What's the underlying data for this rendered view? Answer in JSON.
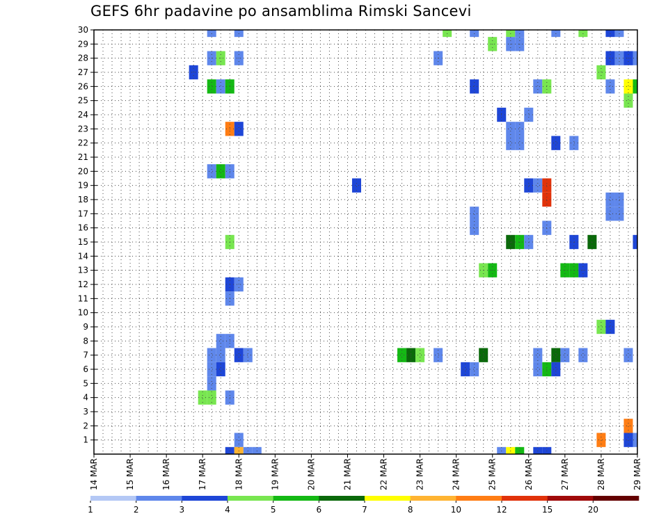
{
  "chart_data": {
    "type": "heatmap",
    "title": "GEFS 6hr padavine po ansamblima Rimski Sancevi",
    "xlabel": "",
    "ylabel": "",
    "x_ticks": [
      "14 MAR",
      "15 MAR",
      "16 MAR",
      "17 MAR",
      "18 MAR",
      "19 MAR",
      "20 MAR",
      "21 MAR",
      "22 MAR",
      "23 MAR",
      "24 MAR",
      "25 MAR",
      "26 MAR",
      "27 MAR",
      "28 MAR",
      "29 MAR"
    ],
    "x_unit": "6-hour step since 14 MAR 00z",
    "xlim": [
      0,
      60
    ],
    "y_ticks": [
      "1",
      "2",
      "3",
      "4",
      "5",
      "6",
      "7",
      "8",
      "9",
      "10",
      "11",
      "12",
      "13",
      "14",
      "15",
      "16",
      "17",
      "18",
      "19",
      "20",
      "21",
      "22",
      "23",
      "24",
      "25",
      "26",
      "27",
      "28",
      "29",
      "30"
    ],
    "ylim": [
      0,
      30
    ],
    "grid": true,
    "color_levels": [
      1,
      2,
      3,
      4,
      5,
      6,
      7,
      8,
      10,
      12,
      15,
      20
    ],
    "palette": [
      "#b4c8f5",
      "#5f87eb",
      "#1e46d7",
      "#78e650",
      "#14b914",
      "#0a690a",
      "#ffff00",
      "#ffb432",
      "#ff7d14",
      "#e1320a",
      "#a00a0a",
      "#640000"
    ],
    "legend": {
      "position": "bottom",
      "labels": [
        "1",
        "2",
        "3",
        "4",
        "5",
        "6",
        "7",
        "8",
        "10",
        "12",
        "15",
        "20"
      ]
    },
    "cells": [
      [
        13,
        30,
        1
      ],
      [
        16,
        30,
        1
      ],
      [
        39,
        30,
        3
      ],
      [
        42,
        30,
        1
      ],
      [
        46,
        30,
        3
      ],
      [
        47,
        30,
        1
      ],
      [
        51,
        30,
        1
      ],
      [
        54,
        30,
        3
      ],
      [
        57,
        30,
        2
      ],
      [
        58,
        30,
        1
      ],
      [
        44,
        29,
        3
      ],
      [
        46,
        29,
        1
      ],
      [
        47,
        29,
        1
      ],
      [
        13,
        28,
        1
      ],
      [
        14,
        28,
        3
      ],
      [
        16,
        28,
        1
      ],
      [
        38,
        28,
        1
      ],
      [
        57,
        28,
        2
      ],
      [
        58,
        28,
        1
      ],
      [
        59,
        28,
        2
      ],
      [
        60,
        28,
        1
      ],
      [
        11,
        27,
        2
      ],
      [
        56,
        27,
        3
      ],
      [
        13,
        26,
        4
      ],
      [
        14,
        26,
        1
      ],
      [
        15,
        26,
        4
      ],
      [
        42,
        26,
        2
      ],
      [
        49,
        26,
        1
      ],
      [
        50,
        26,
        3
      ],
      [
        57,
        26,
        1
      ],
      [
        59,
        26,
        6
      ],
      [
        60,
        26,
        4
      ],
      [
        59,
        25,
        3
      ],
      [
        45,
        24,
        2
      ],
      [
        48,
        24,
        1
      ],
      [
        15,
        23,
        8
      ],
      [
        16,
        23,
        2
      ],
      [
        46,
        23,
        1
      ],
      [
        47,
        23,
        1
      ],
      [
        46,
        22,
        1
      ],
      [
        47,
        22,
        1
      ],
      [
        51,
        22,
        2
      ],
      [
        53,
        22,
        1
      ],
      [
        13,
        20,
        1
      ],
      [
        14,
        20,
        4
      ],
      [
        15,
        20,
        1
      ],
      [
        29,
        19,
        2
      ],
      [
        48,
        19,
        2
      ],
      [
        49,
        19,
        1
      ],
      [
        50,
        19,
        9
      ],
      [
        50,
        18,
        9
      ],
      [
        57,
        18,
        1
      ],
      [
        58,
        18,
        1
      ],
      [
        42,
        17,
        1
      ],
      [
        57,
        17,
        1
      ],
      [
        58,
        17,
        1
      ],
      [
        42,
        16,
        1
      ],
      [
        50,
        16,
        1
      ],
      [
        15,
        15,
        3
      ],
      [
        46,
        15,
        5
      ],
      [
        47,
        15,
        4
      ],
      [
        48,
        15,
        1
      ],
      [
        53,
        15,
        2
      ],
      [
        55,
        15,
        5
      ],
      [
        60,
        15,
        2
      ],
      [
        43,
        13,
        3
      ],
      [
        44,
        13,
        4
      ],
      [
        52,
        13,
        4
      ],
      [
        53,
        13,
        4
      ],
      [
        54,
        13,
        2
      ],
      [
        15,
        12,
        2
      ],
      [
        16,
        12,
        1
      ],
      [
        15,
        11,
        1
      ],
      [
        56,
        9,
        3
      ],
      [
        57,
        9,
        2
      ],
      [
        14,
        8,
        1
      ],
      [
        15,
        8,
        1
      ],
      [
        13,
        7,
        1
      ],
      [
        14,
        7,
        1
      ],
      [
        16,
        7,
        2
      ],
      [
        17,
        7,
        1
      ],
      [
        34,
        7,
        4
      ],
      [
        35,
        7,
        5
      ],
      [
        36,
        7,
        3
      ],
      [
        38,
        7,
        1
      ],
      [
        43,
        7,
        5
      ],
      [
        49,
        7,
        1
      ],
      [
        51,
        7,
        5
      ],
      [
        52,
        7,
        1
      ],
      [
        54,
        7,
        1
      ],
      [
        59,
        7,
        1
      ],
      [
        13,
        6,
        1
      ],
      [
        14,
        6,
        2
      ],
      [
        41,
        6,
        2
      ],
      [
        42,
        6,
        1
      ],
      [
        49,
        6,
        1
      ],
      [
        50,
        6,
        4
      ],
      [
        51,
        6,
        2
      ],
      [
        13,
        5,
        1
      ],
      [
        12,
        4,
        3
      ],
      [
        13,
        4,
        3
      ],
      [
        15,
        4,
        1
      ],
      [
        59,
        2,
        8
      ],
      [
        16,
        1,
        1
      ],
      [
        56,
        1,
        8
      ],
      [
        59,
        1,
        2
      ],
      [
        60,
        1,
        1
      ],
      [
        15,
        0,
        2
      ],
      [
        16,
        0,
        7
      ],
      [
        17,
        0,
        1
      ],
      [
        18,
        0,
        1
      ],
      [
        45,
        0,
        1
      ],
      [
        46,
        0,
        6
      ],
      [
        47,
        0,
        4
      ],
      [
        49,
        0,
        2
      ],
      [
        50,
        0,
        2
      ]
    ]
  }
}
